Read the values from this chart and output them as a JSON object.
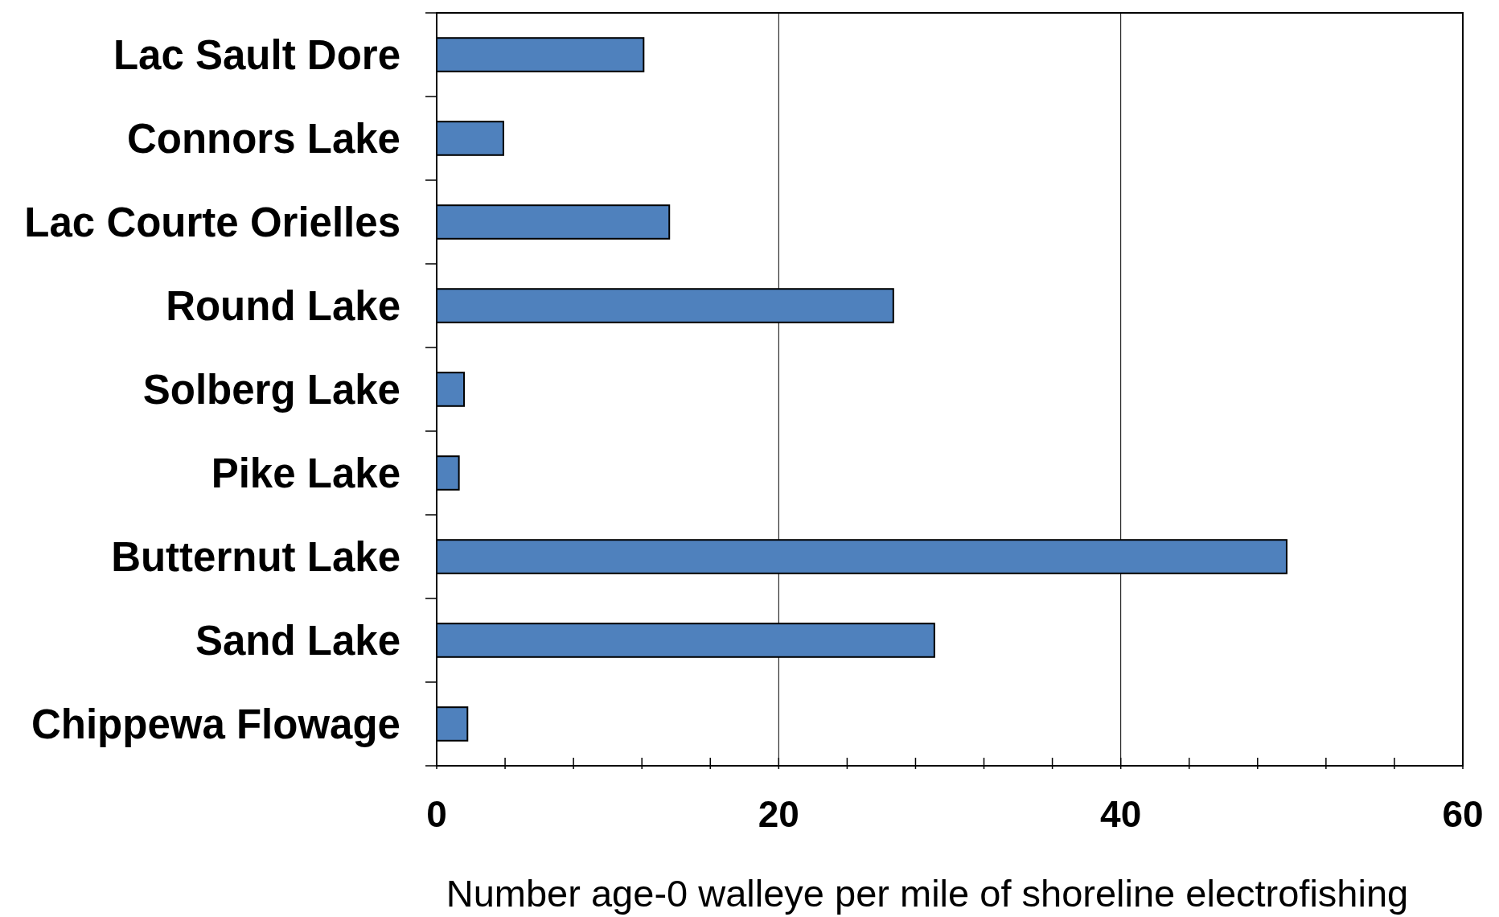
{
  "chart_data": {
    "type": "bar",
    "orientation": "horizontal",
    "xlabel": "Number age-0 walleye per mile of shoreline electrofishing",
    "categories": [
      "Lac Sault Dore",
      "Connors Lake",
      "Lac Courte Orielles",
      "Round Lake",
      "Solberg Lake",
      "Pike Lake",
      "Butternut Lake",
      "Sand Lake",
      "Chippewa Flowage"
    ],
    "values": [
      12.1,
      3.9,
      13.6,
      26.7,
      1.6,
      1.3,
      49.7,
      29.1,
      1.8
    ],
    "color": "#4f81bd",
    "xlim": [
      0,
      60
    ],
    "xticks": [
      0,
      {
        "value": 4,
        "label": null
      },
      {
        "value": 8,
        "label": null
      },
      {
        "value": 12,
        "label": null
      },
      {
        "value": 16,
        "label": null
      },
      20,
      {
        "value": 24,
        "label": null
      },
      {
        "value": 28,
        "label": null
      },
      {
        "value": 32,
        "label": null
      },
      {
        "value": 36,
        "label": null
      },
      40,
      {
        "value": 44,
        "label": null
      },
      {
        "value": 48,
        "label": null
      },
      {
        "value": 52,
        "label": null
      },
      {
        "value": 56,
        "label": null
      },
      60
    ],
    "grid": "x"
  }
}
